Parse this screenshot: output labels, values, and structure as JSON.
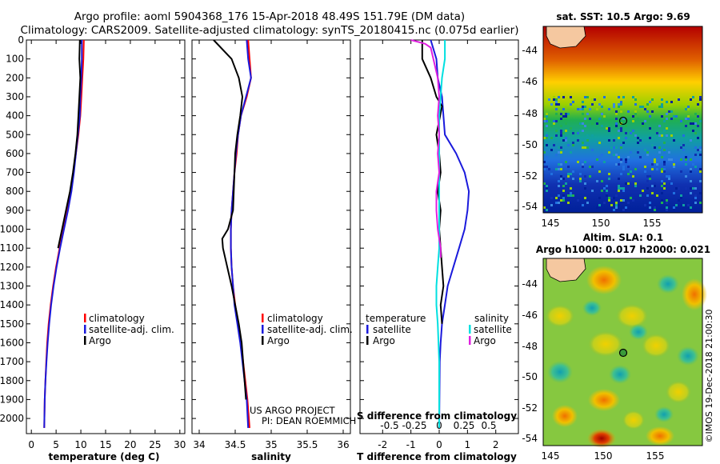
{
  "header": {
    "line1": "Argo profile: aoml 5904368_176 15-Apr-2018 48.49S 151.79E (DM data)",
    "line2": "Climatology: CARS2009. Satellite-adjusted climatology: synTS_20180415.nc (0.075d earlier)"
  },
  "colors": {
    "climatology": "#ff0000",
    "satellite": "#1a1adc",
    "argo": "#000000",
    "sat_salinity": "#00e0e0",
    "argo_salinity_diff": "#e020e0"
  },
  "chart_data": [
    {
      "id": "temperature",
      "type": "line",
      "xlabel": "temperature (deg C)",
      "ylabel": "",
      "xlim": [
        -1,
        31
      ],
      "ylim": [
        2080,
        0
      ],
      "xticks": [
        0,
        5,
        10,
        15,
        20,
        25,
        30
      ],
      "xtick_labels": [
        "0",
        "5",
        "10",
        "15",
        "20",
        "25",
        "30"
      ],
      "yticks": [
        0,
        100,
        200,
        300,
        400,
        500,
        600,
        700,
        800,
        900,
        1000,
        1100,
        1200,
        1300,
        1400,
        1500,
        1600,
        1700,
        1800,
        1900,
        2000
      ],
      "ytick_labels": [
        "0",
        "100",
        "200",
        "300",
        "400",
        "500",
        "600",
        "700",
        "800",
        "900",
        "1000",
        "1100",
        "1200",
        "1300",
        "1400",
        "1500",
        "1600",
        "1700",
        "1800",
        "1900",
        "2000"
      ],
      "legend": [
        "climatology",
        "satellite-adj. clim.",
        "Argo"
      ],
      "series": [
        {
          "name": "climatology",
          "color": "#ff0000",
          "x": [
            10.6,
            10.5,
            10.3,
            10.1,
            9.9,
            9.5,
            9.0,
            8.5,
            8.0,
            7.3,
            6.5,
            5.7,
            5.0,
            4.4,
            3.9,
            3.5,
            3.2,
            3.0,
            2.85,
            2.7,
            2.6
          ],
          "y": [
            0,
            100,
            200,
            300,
            400,
            500,
            600,
            700,
            800,
            900,
            1000,
            1100,
            1200,
            1300,
            1400,
            1500,
            1600,
            1700,
            1800,
            1900,
            2050
          ]
        },
        {
          "name": "satellite-adj. clim.",
          "color": "#1a1adc",
          "x": [
            10.2,
            10.2,
            10.1,
            9.9,
            9.8,
            9.4,
            9.0,
            8.6,
            8.1,
            7.4,
            6.6,
            5.8,
            5.1,
            4.5,
            4.0,
            3.6,
            3.3,
            3.05,
            2.85,
            2.7,
            2.6
          ],
          "y": [
            0,
            100,
            200,
            300,
            400,
            500,
            600,
            700,
            800,
            900,
            1000,
            1100,
            1200,
            1300,
            1400,
            1500,
            1600,
            1700,
            1800,
            1900,
            2050
          ]
        },
        {
          "name": "Argo",
          "color": "#000000",
          "x": [
            9.8,
            9.7,
            9.9,
            9.7,
            9.5,
            9.3,
            8.9,
            8.4,
            7.8,
            7.0,
            6.2,
            5.4
          ],
          "y": [
            0,
            100,
            200,
            300,
            400,
            500,
            600,
            700,
            800,
            900,
            1000,
            1100
          ]
        }
      ]
    },
    {
      "id": "salinity",
      "type": "line",
      "xlabel": "salinity",
      "xlim": [
        33.9,
        36.1
      ],
      "ylim": [
        2080,
        0
      ],
      "xticks": [
        34,
        34.5,
        35,
        35.5,
        36
      ],
      "xtick_labels": [
        "34",
        "34.5",
        "35",
        "35.5",
        "36"
      ],
      "legend": [
        "climatology",
        "satellite-adj. clim.",
        "Argo"
      ],
      "annotation": [
        "US ARGO PROJECT",
        "PI: DEAN ROEMMICH"
      ],
      "series": [
        {
          "name": "climatology",
          "color": "#ff0000",
          "x": [
            34.68,
            34.7,
            34.72,
            34.66,
            34.58,
            34.54,
            34.52,
            34.49,
            34.47,
            34.45,
            34.44,
            34.44,
            34.45,
            34.47,
            34.5,
            34.54,
            34.58,
            34.61,
            34.64,
            34.67,
            34.7
          ],
          "y": [
            0,
            100,
            200,
            300,
            400,
            500,
            600,
            700,
            800,
            900,
            1000,
            1100,
            1200,
            1300,
            1400,
            1500,
            1600,
            1700,
            1800,
            1900,
            2050
          ]
        },
        {
          "name": "satellite-adj. clim.",
          "color": "#1a1adc",
          "x": [
            34.66,
            34.68,
            34.72,
            34.65,
            34.58,
            34.54,
            34.51,
            34.49,
            34.47,
            34.45,
            34.44,
            34.44,
            34.45,
            34.47,
            34.49,
            34.53,
            34.57,
            34.6,
            34.63,
            34.66,
            34.68
          ],
          "y": [
            0,
            100,
            200,
            300,
            400,
            500,
            600,
            700,
            800,
            900,
            1000,
            1100,
            1200,
            1300,
            1400,
            1500,
            1600,
            1700,
            1800,
            1900,
            2050
          ]
        },
        {
          "name": "Argo",
          "color": "#000000",
          "x": [
            34.2,
            34.45,
            34.55,
            34.6,
            34.57,
            34.53,
            34.5,
            34.49,
            34.48,
            34.47,
            34.4,
            34.32,
            34.33,
            34.45,
            34.55,
            34.59,
            34.61,
            34.63,
            34.65
          ],
          "y": [
            0,
            100,
            200,
            300,
            400,
            500,
            600,
            700,
            800,
            900,
            1000,
            1050,
            1100,
            1300,
            1500,
            1600,
            1700,
            1800,
            1900
          ]
        }
      ]
    },
    {
      "id": "differences",
      "type": "line",
      "xlabel": "T difference from climatology",
      "top_label": "S difference from climatology",
      "xlim": [
        -2.8,
        2.8
      ],
      "ylim": [
        2080,
        0
      ],
      "xticks": [
        -2,
        -1,
        0,
        1,
        2
      ],
      "xtick_labels": [
        "-2",
        "-1",
        "0",
        "1",
        "2"
      ],
      "sticks": [
        -0.5,
        -0.25,
        0,
        0.25,
        0.5
      ],
      "stick_labels": [
        "-0.5",
        "-0.25",
        "0",
        "0.25",
        "0.5"
      ],
      "legend_temperature": {
        "header": "temperature",
        "items": [
          "satellite",
          "Argo"
        ]
      },
      "legend_salinity": {
        "header": "salinity",
        "items": [
          "satellite",
          "Argo"
        ]
      },
      "series": [
        {
          "name": "T satellite",
          "color": "#1a1adc",
          "x": [
            -0.3,
            -0.1,
            -0.05,
            0.1,
            0.15,
            0.2,
            0.6,
            0.9,
            1.05,
            1.0,
            0.9,
            0.7,
            0.5,
            0.3,
            0.2,
            0.1,
            0.05,
            0.02,
            0.0
          ],
          "y": [
            0,
            100,
            200,
            300,
            400,
            500,
            600,
            700,
            800,
            900,
            1000,
            1100,
            1200,
            1300,
            1400,
            1500,
            1600,
            1700,
            2050
          ]
        },
        {
          "name": "T Argo",
          "color": "#000000",
          "x": [
            -0.6,
            -0.6,
            -0.3,
            -0.1,
            0.1,
            -0.1,
            0.0,
            0.05,
            -0.05,
            0.05,
            0.0,
            0.05,
            0.1,
            0.15,
            0.05,
            0.1
          ],
          "y": [
            0,
            100,
            200,
            300,
            350,
            500,
            600,
            700,
            800,
            900,
            1000,
            1100,
            1200,
            1300,
            1400,
            1500
          ]
        },
        {
          "name": "S satellite",
          "color": "#00e0e0",
          "x": [
            0.2,
            0.2,
            0.1,
            0.05,
            0.0,
            0.0,
            0.0,
            0.0,
            0.0,
            0.0,
            0.0,
            0.0,
            -0.05,
            -0.1,
            -0.1,
            -0.05,
            0.0,
            0.0
          ],
          "y": [
            0,
            100,
            200,
            300,
            400,
            500,
            600,
            700,
            800,
            900,
            1000,
            1100,
            1200,
            1300,
            1400,
            1500,
            1700,
            2050
          ]
        },
        {
          "name": "S Argo",
          "color": "#e020e0",
          "x": [
            -1.0,
            -0.5,
            -0.3,
            -0.05,
            0.0,
            -0.05,
            0.0,
            -0.05,
            0.0,
            -0.1,
            -0.1,
            -0.05,
            0.05,
            0.05
          ],
          "y": [
            0,
            20,
            40,
            200,
            300,
            400,
            500,
            600,
            700,
            800,
            900,
            1000,
            1100,
            1150
          ]
        }
      ]
    }
  ],
  "sst_map": {
    "title": "sat. SST: 10.5 Argo: 9.69",
    "xticks": [
      "145",
      "150",
      "155"
    ],
    "yticks": [
      "-44",
      "-46",
      "-48",
      "-50",
      "-52",
      "-54"
    ]
  },
  "sla_map": {
    "title1": "Altim. SLA: 0.1",
    "title2": "Argo h1000: 0.017 h2000: 0.021",
    "xticks": [
      "145",
      "150",
      "155"
    ],
    "yticks": [
      "-44",
      "-46",
      "-48",
      "-50",
      "-52",
      "-54"
    ],
    "credit": "©IMOS 19-Dec-2018 21:00:30"
  }
}
